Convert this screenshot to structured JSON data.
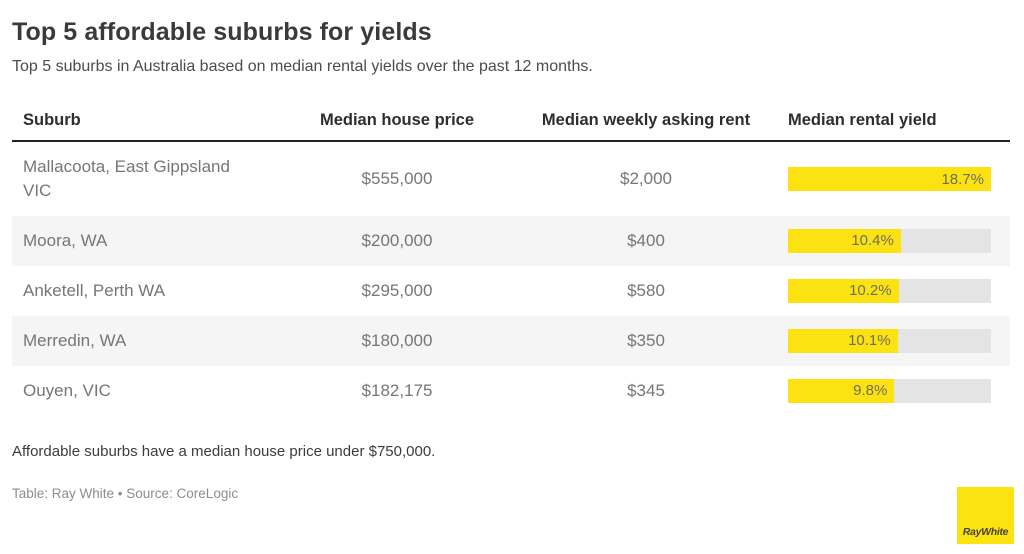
{
  "header": {
    "title": "Top 5 affordable suburbs for yields",
    "subtitle": "Top 5 suburbs in Australia based on median rental yields over the past 12 months."
  },
  "chart_data": {
    "type": "table",
    "title": "Top 5 affordable suburbs for yields",
    "subtitle": "Top 5 suburbs in Australia based on median rental yields over the past 12 months.",
    "columns": [
      "Suburb",
      "Median house price",
      "Median weekly asking rent",
      "Median rental yield"
    ],
    "rows": [
      {
        "suburb": "Mallacoota, East Gippsland VIC",
        "house_price": "$555,000",
        "weekly_rent": "$2,000",
        "rental_yield_label": "18.7%",
        "rental_yield": 18.7
      },
      {
        "suburb": "Moora, WA",
        "house_price": "$200,000",
        "weekly_rent": "$400",
        "rental_yield_label": "10.4%",
        "rental_yield": 10.4
      },
      {
        "suburb": "Anketell, Perth WA",
        "house_price": "$295,000",
        "weekly_rent": "$580",
        "rental_yield_label": "10.2%",
        "rental_yield": 10.2
      },
      {
        "suburb": "Merredin, WA",
        "house_price": "$180,000",
        "weekly_rent": "$350",
        "rental_yield_label": "10.1%",
        "rental_yield": 10.1
      },
      {
        "suburb": "Ouyen, VIC",
        "house_price": "$182,175",
        "weekly_rent": "$345",
        "rental_yield_label": "9.8%",
        "rental_yield": 9.8
      }
    ],
    "bar": {
      "column": "Median rental yield",
      "min": 0,
      "max": 18.7
    }
  },
  "footer": {
    "note": "Affordable suburbs have a median house price under $750,000.",
    "byline": "Table: Ray White • Source: CoreLogic",
    "logo_text": "RayWhite"
  },
  "colors": {
    "accent_yellow": "#fce211",
    "bar_track": "#e4e4e4",
    "row_stripe": "#f5f5f5",
    "header_rule": "#222222"
  }
}
